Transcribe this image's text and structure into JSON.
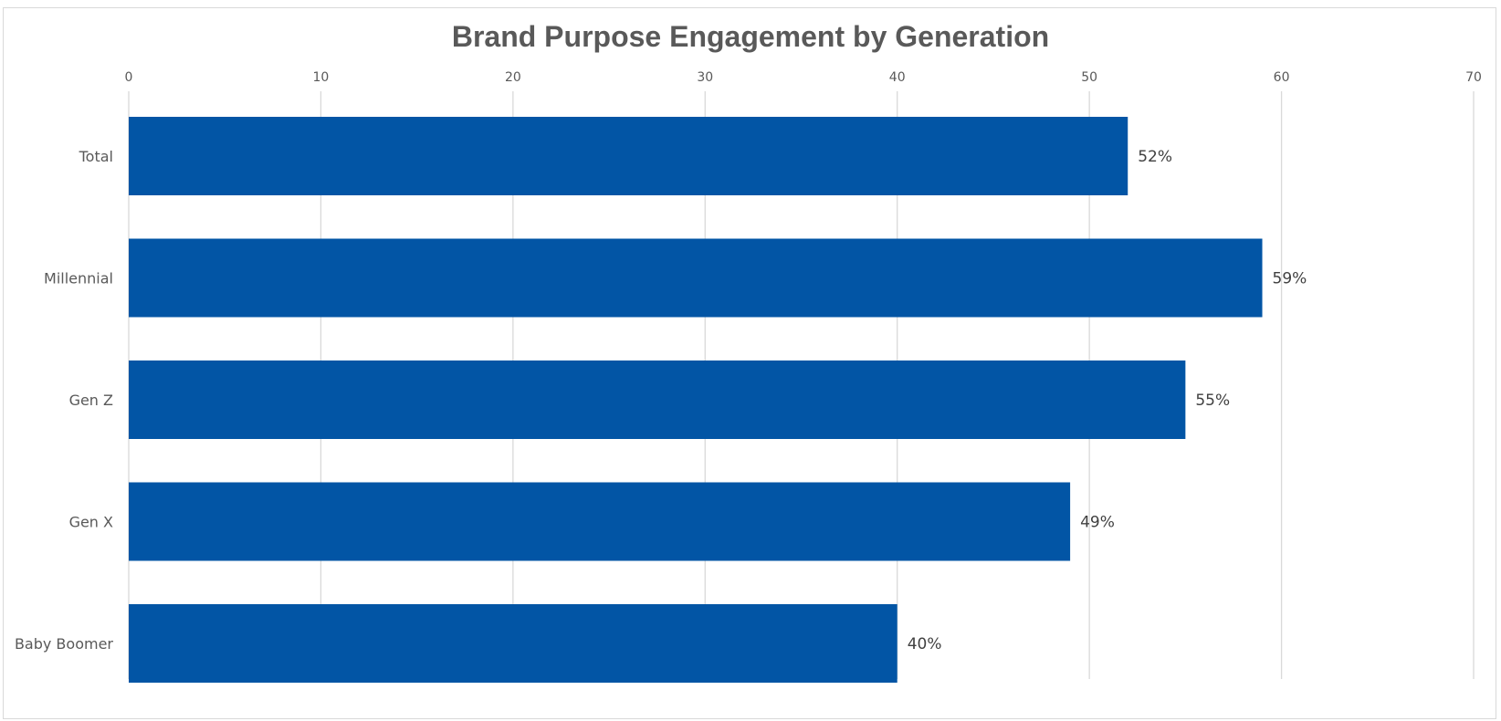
{
  "chart_data": {
    "type": "bar",
    "orientation": "horizontal",
    "title": "Brand Purpose Engagement by Generation",
    "categories": [
      "Total",
      "Millennial",
      "Gen Z",
      "Gen X",
      "Baby Boomer"
    ],
    "values": [
      52,
      59,
      55,
      49,
      40
    ],
    "data_labels": [
      "52%",
      "59%",
      "55%",
      "49%",
      "40%"
    ],
    "xlim": [
      0,
      70
    ],
    "x_ticks": [
      "0",
      "10",
      "20",
      "30",
      "40",
      "50",
      "60",
      "70"
    ],
    "x_axis_position": "top",
    "grid": true,
    "legend": "none",
    "bar_color": "#0255A5"
  }
}
